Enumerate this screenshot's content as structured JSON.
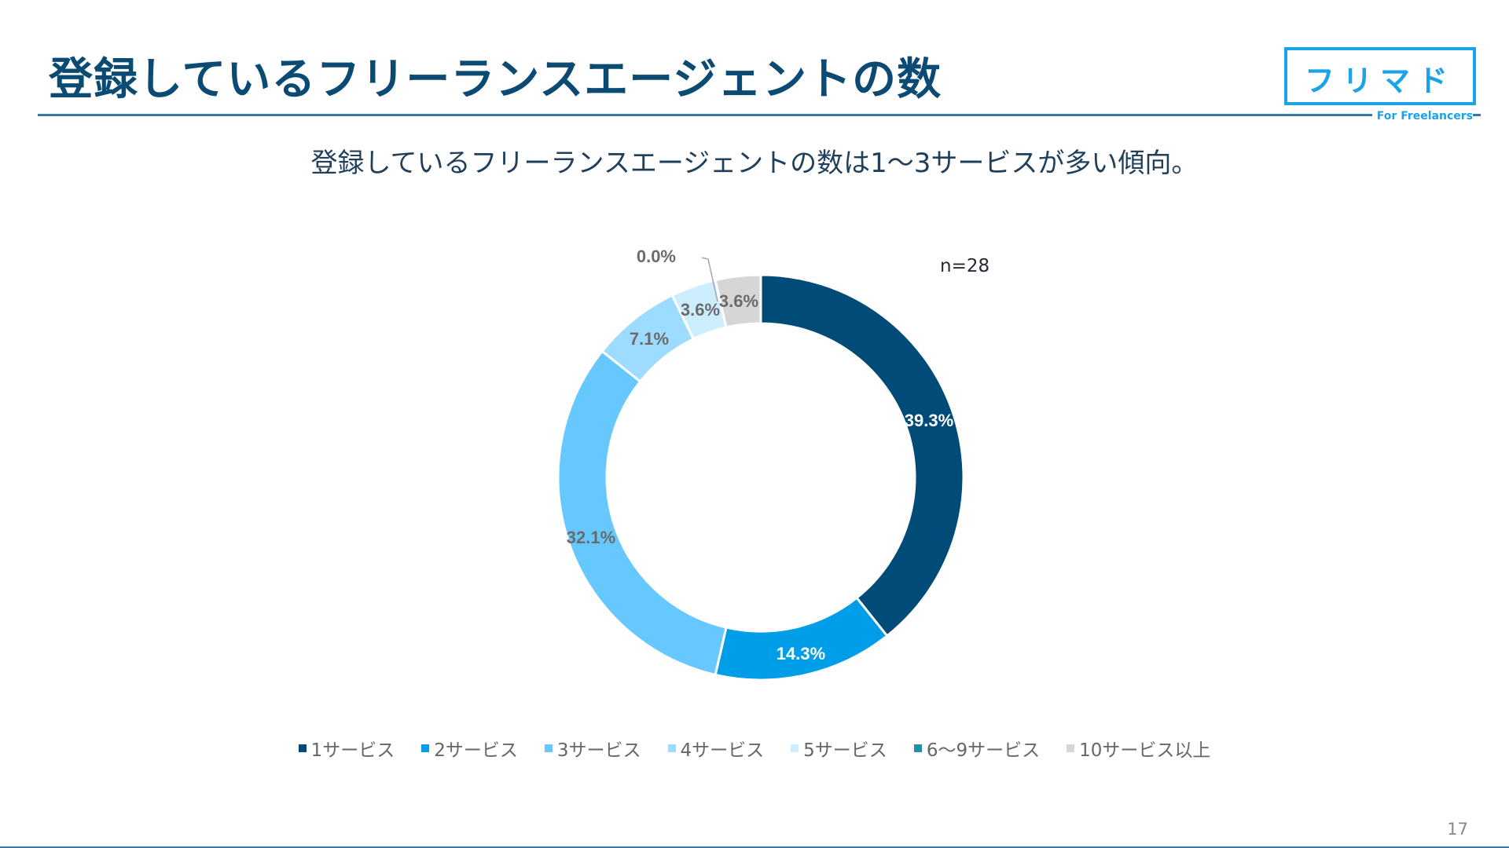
{
  "header": {
    "title": "登録しているフリーランスエージェントの数",
    "logo_main": "フリマド",
    "logo_sub": "For Freelancers"
  },
  "subtitle": "登録しているフリーランスエージェントの数は1〜3サービスが多い傾向。",
  "sample_label": "n=28",
  "page_number": "17",
  "chart_data": {
    "type": "pie",
    "subtype": "donut",
    "categories": [
      "1サービス",
      "2サービス",
      "3サービス",
      "4サービス",
      "5サービス",
      "6〜9サービス",
      "10サービス以上"
    ],
    "values": [
      39.3,
      14.3,
      32.1,
      7.1,
      3.6,
      0.0,
      3.6
    ],
    "labels": [
      "39.3%",
      "14.3%",
      "32.1%",
      "7.1%",
      "3.6%",
      "0.0%",
      "3.6%"
    ],
    "colors": [
      "#004b78",
      "#009ee8",
      "#66c8ff",
      "#9ddbff",
      "#cdeeff",
      "#1e90a8",
      "#d6d6d6"
    ],
    "label_colors": [
      "#ffffff",
      "#ffffff",
      "#6b6b6b",
      "#6b6b6b",
      "#6b6b6b",
      "#6b6b6b",
      "#6b6b6b"
    ],
    "legend_position": "bottom"
  }
}
